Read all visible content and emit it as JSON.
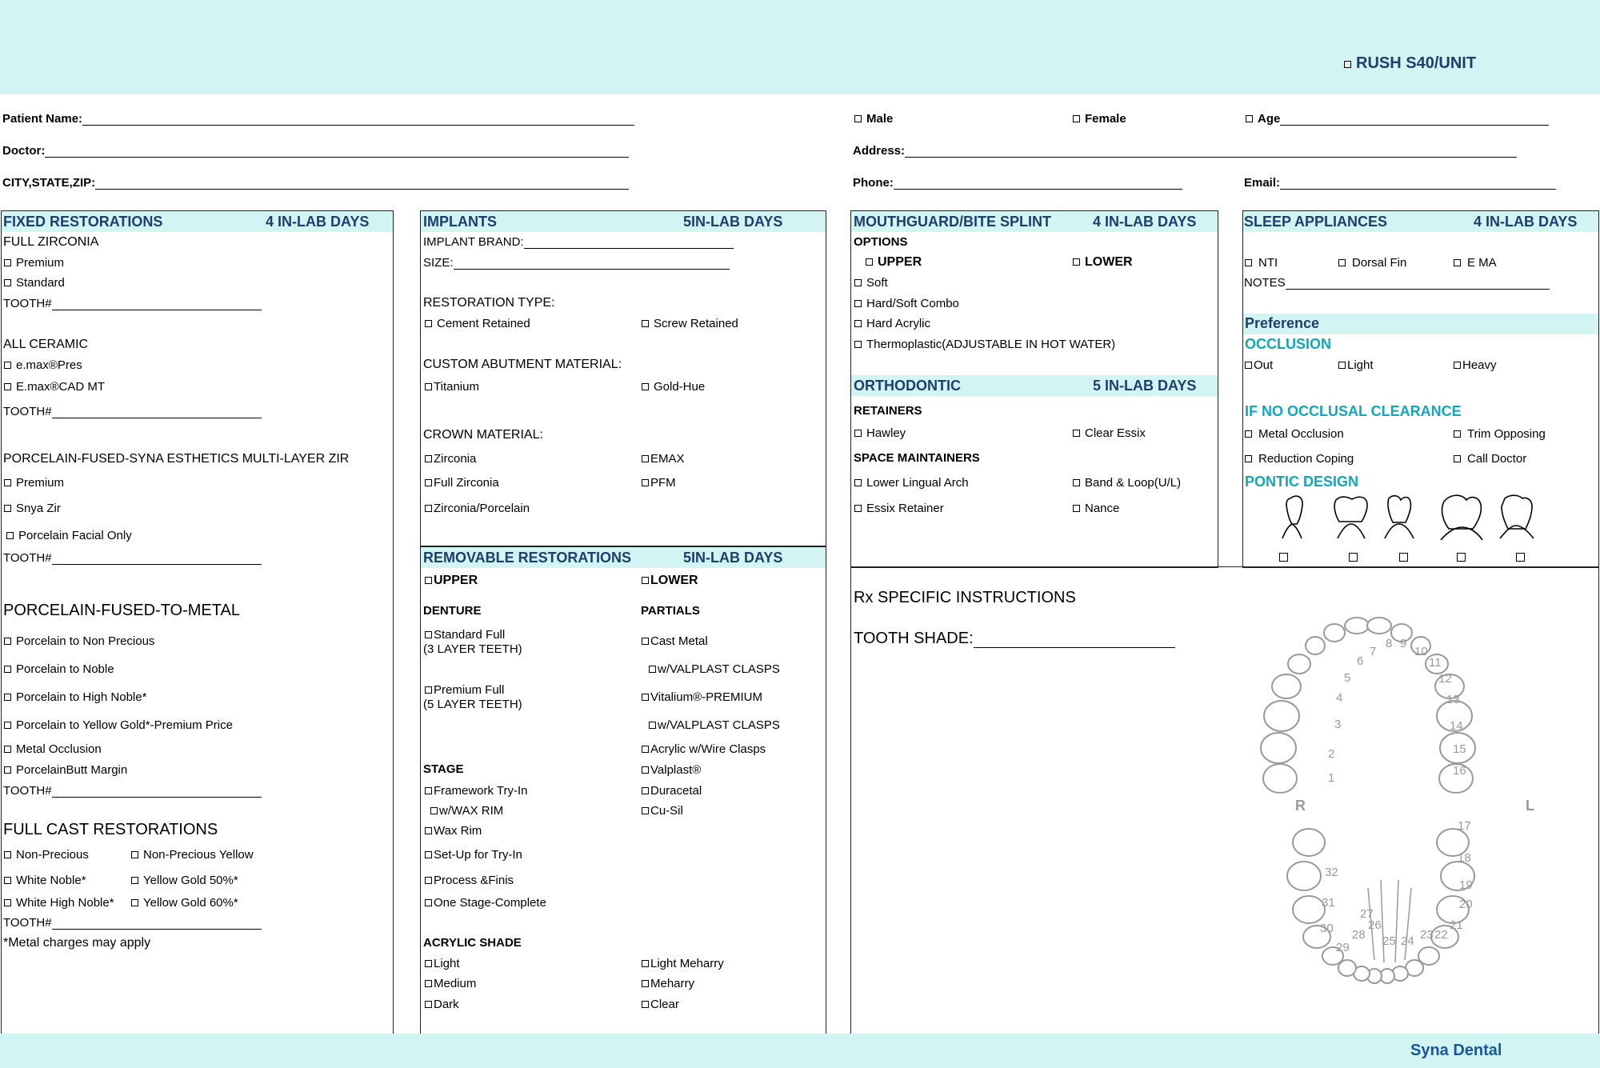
{
  "header": {
    "rush": "RUSH S40/UNIT"
  },
  "patient": {
    "name": "Patient Name:",
    "male": "Male",
    "female": "Female",
    "age": "Age",
    "doctor": "Doctor:",
    "address": "Address:",
    "city": "CITY,STATE,ZIP:",
    "phone": "Phone:",
    "email": "Email:"
  },
  "fixed": {
    "title": "FIXED RESTORATIONS",
    "days": "4 IN-LAB DAYS",
    "zirconia": "FULL ZIRCONIA",
    "premium": "Premium",
    "standard": "Standard",
    "tooth": "TOOTH#",
    "ceramic": "ALL CERAMIC",
    "emax_press": "e.max®Pres",
    "emax_cad": "E.max®CAD MT",
    "pfs": "PORCELAIN-FUSED-SYNA ESTHETICS MULTI-LAYER ZIR",
    "pfs_premium": "Premium",
    "snya": "Snya Zir",
    "facial": "Porcelain Facial Only",
    "pfm": "PORCELAIN-FUSED-TO-METAL",
    "pfm_items": [
      "Porcelain to Non Precious",
      "Porcelain to Noble",
      "Porcelain to High Noble*",
      "Porcelain to Yellow Gold*-Premium Price",
      "Metal Occlusion",
      "PorcelainButt Margin"
    ],
    "cast": "FULL CAST RESTORATIONS",
    "cast_left": [
      "Non-Precious",
      "White Noble*",
      "White High Noble*"
    ],
    "cast_right": [
      "Non-Precious Yellow",
      "Yellow Gold 50%*",
      "Yellow Gold 60%*"
    ],
    "note": "*Metal charges may apply"
  },
  "implants": {
    "title": "IMPLANTS",
    "days": "5IN-LAB DAYS",
    "brand": "IMPLANT BRAND:",
    "size": "SIZE:",
    "rtype": "RESTORATION TYPE:",
    "cement": "Cement Retained",
    "screw": "Screw Retained",
    "abut": "CUSTOM ABUTMENT MATERIAL:",
    "titanium": "Titanium",
    "goldhue": "Gold-Hue",
    "crown": "CROWN MATERIAL:",
    "zirconia": "Zirconia",
    "emax": "EMAX",
    "fullzir": "Full Zirconia",
    "pfm": "PFM",
    "zirpor": "Zirconia/Porcelain"
  },
  "removable": {
    "title": "REMOVABLE RESTORATIONS",
    "days": "5IN-LAB DAYS",
    "upper": "UPPER",
    "lower": "LOWER",
    "denture": "DENTURE",
    "partials": "PARTIALS",
    "std_full": "Standard Full",
    "std_sub": "(3 LAYER TEETH)",
    "prem_full": "Premium Full",
    "prem_sub": "(5 LAYER TEETH)",
    "partial_items": [
      "Cast Metal",
      "w/VALPLAST CLASPS",
      "Vitalium®-PREMIUM",
      "w/VALPLAST CLASPS",
      "Acrylic w/Wire Clasps",
      "Valplast®",
      "Duracetal",
      "Cu-Sil"
    ],
    "stage": "STAGE",
    "stage_items": [
      "Framework Try-In",
      "w/WAX RIM",
      "Wax Rim",
      "Set-Up for Try-In",
      "Process &Finis",
      "One Stage-Complete"
    ],
    "acrylic": "ACRYLIC SHADE",
    "shade_left": [
      "Light",
      "Medium",
      "Dark"
    ],
    "shade_right": [
      "Light Meharry",
      "Meharry",
      "Clear"
    ]
  },
  "mouthguard": {
    "title": "MOUTHGUARD/BITE SPLINT",
    "days": "4 IN-LAB DAYS",
    "options": "OPTIONS",
    "upper": "UPPER",
    "lower": "LOWER",
    "items": [
      "Soft",
      "Hard/Soft Combo",
      "Hard Acrylic",
      "Thermoplastic(ADJUSTABLE IN HOT WATER)"
    ]
  },
  "ortho": {
    "title": "ORTHODONTIC",
    "days": "5 IN-LAB DAYS",
    "retainers": "RETAINERS",
    "hawley": "Hawley",
    "essix": "Clear Essix",
    "space": "SPACE MAINTAINERS",
    "lingual": "Lower Lingual Arch",
    "band": "Band & Loop(U/L)",
    "essix_ret": "Essix Retainer",
    "nance": "Nance"
  },
  "sleep": {
    "title": "SLEEP APPLIANCES",
    "days": "4 IN-LAB DAYS",
    "nti": "NTI",
    "dorsal": "Dorsal Fin",
    "ema": "E MA",
    "notes": "NOTES",
    "preference": "Preference",
    "occlusion": "OCCLUSION",
    "out": "Out",
    "light": "Light",
    "heavy": "Heavy",
    "clearance": "IF NO OCCLUSAL CLEARANCE",
    "metal": "Metal Occlusion",
    "trim": "Trim Opposing",
    "reduction": "Reduction Coping",
    "call": "Call Doctor",
    "pontic": "PONTIC DESIGN"
  },
  "rx": {
    "title": "Rx SPECIFIC INSTRUCTIONS",
    "shade": "TOOTH SHADE:",
    "right": "R",
    "left": "L",
    "teeth": [
      "1",
      "2",
      "3",
      "4",
      "5",
      "6",
      "7",
      "8",
      "9",
      "10",
      "11",
      "12",
      "13",
      "14",
      "15",
      "16",
      "17",
      "18",
      "19",
      "20",
      "21",
      "22",
      "23",
      "24",
      "25",
      "26",
      "27",
      "28",
      "29",
      "30",
      "31",
      "32"
    ]
  },
  "footer": {
    "brand": "Syna Dental"
  }
}
